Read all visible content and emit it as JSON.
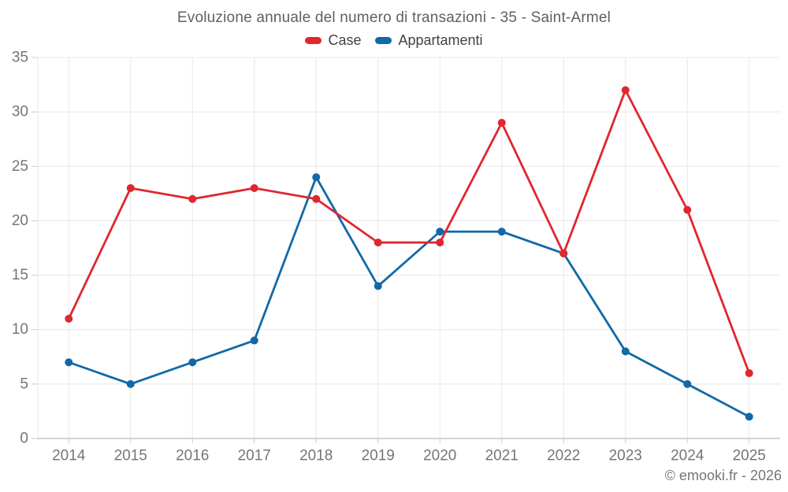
{
  "chart_data": {
    "type": "line",
    "title": "Evoluzione annuale del numero di transazioni - 35 - Saint-Armel",
    "categories": [
      "2014",
      "2015",
      "2016",
      "2017",
      "2018",
      "2019",
      "2020",
      "2021",
      "2022",
      "2023",
      "2024",
      "2025"
    ],
    "series": [
      {
        "name": "Case",
        "color": "#df2730",
        "values": [
          11,
          23,
          22,
          23,
          22,
          18,
          18,
          29,
          17,
          32,
          21,
          6
        ]
      },
      {
        "name": "Appartamenti",
        "color": "#1269a6",
        "values": [
          7,
          5,
          7,
          9,
          24,
          14,
          19,
          19,
          17,
          8,
          5,
          2
        ]
      }
    ],
    "ylim": [
      0,
      35
    ],
    "y_ticks": [
      0,
      5,
      10,
      15,
      20,
      25,
      30,
      35
    ],
    "grid": true,
    "legend_position": "top",
    "xlabel": "",
    "ylabel": ""
  },
  "style": {
    "grid_color": "#e8e8e8",
    "axis_line_color": "#aaaaaa",
    "tick_color": "#cccccc",
    "axis_text_color": "#757575",
    "background": "#ffffff"
  },
  "footer": {
    "credit": "© emooki.fr - 2026"
  }
}
